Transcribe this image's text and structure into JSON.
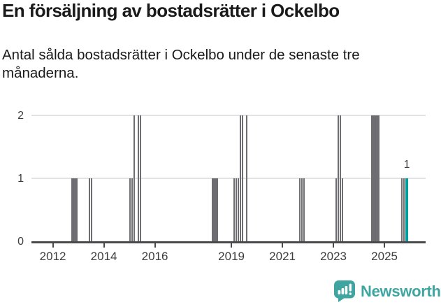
{
  "title": "En försäljning av bostadsrätter i Ockelbo",
  "subtitle": "Antal sålda bostadsrätter i Ockelbo under de senaste tre månaderna.",
  "footer": {
    "brand": "Newsworthy",
    "icon": "newsworthy-chart-bubble-icon"
  },
  "colors": {
    "bar": "#6e6e72",
    "highlight": "#009c9e",
    "brand": "#3fa5a1",
    "grid": "#e3e3e3",
    "axis": "#4a4a4c",
    "title_text": "#1a1a1a",
    "axis_text": "#3d3d3d"
  },
  "chart_data": {
    "type": "bar",
    "title": "En försäljning av bostadsrätter i Ockelbo",
    "subtitle": "Antal sålda bostadsrätter i Ockelbo under de senaste tre månaderna.",
    "x_unit": "month",
    "ylabel": "",
    "xlabel": "",
    "ylim": [
      0,
      2
    ],
    "y_ticks": [
      0,
      1,
      2
    ],
    "grid": "horizontal",
    "legend": "none",
    "x_ticks": [
      {
        "label": "2012",
        "year": 2012
      },
      {
        "label": "2014",
        "year": 2014
      },
      {
        "label": "2016",
        "year": 2016
      },
      {
        "label": "2019",
        "year": 2019
      },
      {
        "label": "2021",
        "year": 2021
      },
      {
        "label": "2023",
        "year": 2023
      },
      {
        "label": "2025",
        "year": 2025
      }
    ],
    "annotation": {
      "text": "1",
      "month": "2025-11"
    },
    "bars": [
      {
        "month": "2012-10",
        "value": 1
      },
      {
        "month": "2012-11",
        "value": 1
      },
      {
        "month": "2012-12",
        "value": 1
      },
      {
        "month": "2013-06",
        "value": 1
      },
      {
        "month": "2013-07",
        "value": 1
      },
      {
        "month": "2015-01",
        "value": 1
      },
      {
        "month": "2015-02",
        "value": 1
      },
      {
        "month": "2015-03",
        "value": 2
      },
      {
        "month": "2015-05",
        "value": 2
      },
      {
        "month": "2015-06",
        "value": 2
      },
      {
        "month": "2018-04",
        "value": 1
      },
      {
        "month": "2018-05",
        "value": 1
      },
      {
        "month": "2018-06",
        "value": 1
      },
      {
        "month": "2019-02",
        "value": 1
      },
      {
        "month": "2019-03",
        "value": 1
      },
      {
        "month": "2019-04",
        "value": 1
      },
      {
        "month": "2019-05",
        "value": 2
      },
      {
        "month": "2019-06",
        "value": 2
      },
      {
        "month": "2019-08",
        "value": 2
      },
      {
        "month": "2021-09",
        "value": 1
      },
      {
        "month": "2021-10",
        "value": 1
      },
      {
        "month": "2021-11",
        "value": 1
      },
      {
        "month": "2023-02",
        "value": 1
      },
      {
        "month": "2023-03",
        "value": 2
      },
      {
        "month": "2023-04",
        "value": 2
      },
      {
        "month": "2023-05",
        "value": 1
      },
      {
        "month": "2024-07",
        "value": 2
      },
      {
        "month": "2024-08",
        "value": 2
      },
      {
        "month": "2024-09",
        "value": 2
      },
      {
        "month": "2024-10",
        "value": 2
      },
      {
        "month": "2025-09",
        "value": 1
      },
      {
        "month": "2025-10",
        "value": 1
      },
      {
        "month": "2025-11",
        "value": 1,
        "highlight": true
      }
    ]
  }
}
